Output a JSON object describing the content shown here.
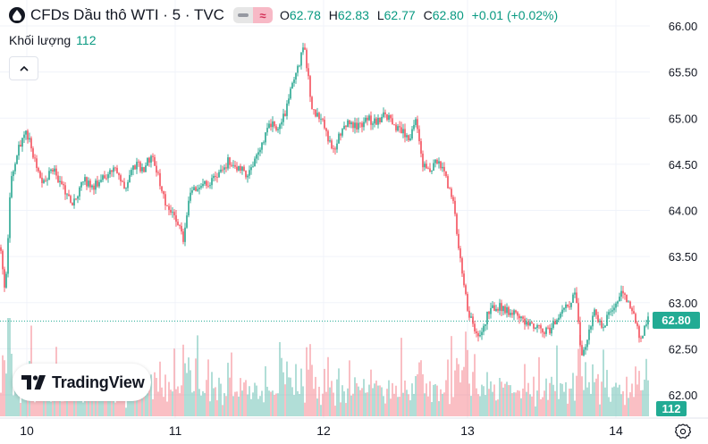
{
  "header": {
    "title": "CFDs Dầu thô WTI · 5 · TVC",
    "ohlc": [
      {
        "label": "O",
        "value": "62.78"
      },
      {
        "label": "H",
        "value": "62.83"
      },
      {
        "label": "L",
        "value": "62.77"
      },
      {
        "label": "C",
        "value": "62.80"
      }
    ],
    "change": "+0.01 (+0.02%)"
  },
  "volume_legend": {
    "label": "Khối lượng",
    "value": "112"
  },
  "logo": {
    "text": "TradingView"
  },
  "colors": {
    "up": "#089981",
    "down": "#f23645",
    "label_bg": "#22ab94",
    "axis_text": "#131722",
    "grid": "#f0f3fa"
  },
  "chart_data": {
    "type": "candlestick",
    "interval": "5",
    "y_axis": {
      "ticks": [
        "66.00",
        "65.50",
        "65.00",
        "64.50",
        "64.00",
        "63.50",
        "63.00",
        "62.50",
        "62.00"
      ],
      "min": 61.98,
      "max": 66.05,
      "position": "right"
    },
    "x_axis": {
      "ticks": [
        "10",
        "11",
        "12",
        "13",
        "14"
      ]
    },
    "last_price": "62.80",
    "last_volume": "112",
    "price_path": [
      [
        0,
        63.6
      ],
      [
        6,
        63.1
      ],
      [
        12,
        64.3
      ],
      [
        20,
        64.65
      ],
      [
        30,
        64.85
      ],
      [
        38,
        64.55
      ],
      [
        48,
        64.3
      ],
      [
        60,
        64.45
      ],
      [
        70,
        64.25
      ],
      [
        82,
        64.05
      ],
      [
        92,
        64.35
      ],
      [
        104,
        64.25
      ],
      [
        116,
        64.35
      ],
      [
        128,
        64.45
      ],
      [
        140,
        64.25
      ],
      [
        150,
        64.5
      ],
      [
        160,
        64.45
      ],
      [
        170,
        64.6
      ],
      [
        178,
        64.35
      ],
      [
        186,
        64.05
      ],
      [
        196,
        63.95
      ],
      [
        205,
        63.7
      ],
      [
        212,
        64.2
      ],
      [
        222,
        64.25
      ],
      [
        232,
        64.3
      ],
      [
        244,
        64.35
      ],
      [
        256,
        64.55
      ],
      [
        266,
        64.45
      ],
      [
        276,
        64.4
      ],
      [
        290,
        64.6
      ],
      [
        300,
        64.95
      ],
      [
        310,
        64.9
      ],
      [
        320,
        65.05
      ],
      [
        326,
        65.4
      ],
      [
        334,
        65.55
      ],
      [
        340,
        65.8
      ],
      [
        344,
        65.5
      ],
      [
        348,
        65.15
      ],
      [
        356,
        65.0
      ],
      [
        364,
        64.9
      ],
      [
        372,
        64.6
      ],
      [
        380,
        64.85
      ],
      [
        390,
        64.95
      ],
      [
        400,
        64.9
      ],
      [
        410,
        65.0
      ],
      [
        420,
        64.95
      ],
      [
        432,
        65.05
      ],
      [
        440,
        64.9
      ],
      [
        448,
        64.85
      ],
      [
        458,
        64.8
      ],
      [
        466,
        65.0
      ],
      [
        472,
        64.5
      ],
      [
        480,
        64.4
      ],
      [
        490,
        64.55
      ],
      [
        500,
        64.3
      ],
      [
        508,
        64.05
      ],
      [
        514,
        63.5
      ],
      [
        520,
        63.1
      ],
      [
        524,
        62.9
      ],
      [
        532,
        62.65
      ],
      [
        538,
        62.6
      ],
      [
        544,
        62.85
      ],
      [
        552,
        62.95
      ],
      [
        562,
        62.95
      ],
      [
        572,
        62.9
      ],
      [
        582,
        62.85
      ],
      [
        594,
        62.75
      ],
      [
        604,
        62.7
      ],
      [
        614,
        62.7
      ],
      [
        624,
        62.85
      ],
      [
        634,
        62.95
      ],
      [
        644,
        63.1
      ],
      [
        650,
        62.4
      ],
      [
        656,
        62.6
      ],
      [
        664,
        62.9
      ],
      [
        674,
        62.75
      ],
      [
        684,
        62.9
      ],
      [
        694,
        63.1
      ],
      [
        702,
        63.05
      ],
      [
        710,
        62.85
      ],
      [
        716,
        62.55
      ],
      [
        722,
        62.8
      ],
      [
        727,
        62.8
      ]
    ]
  }
}
